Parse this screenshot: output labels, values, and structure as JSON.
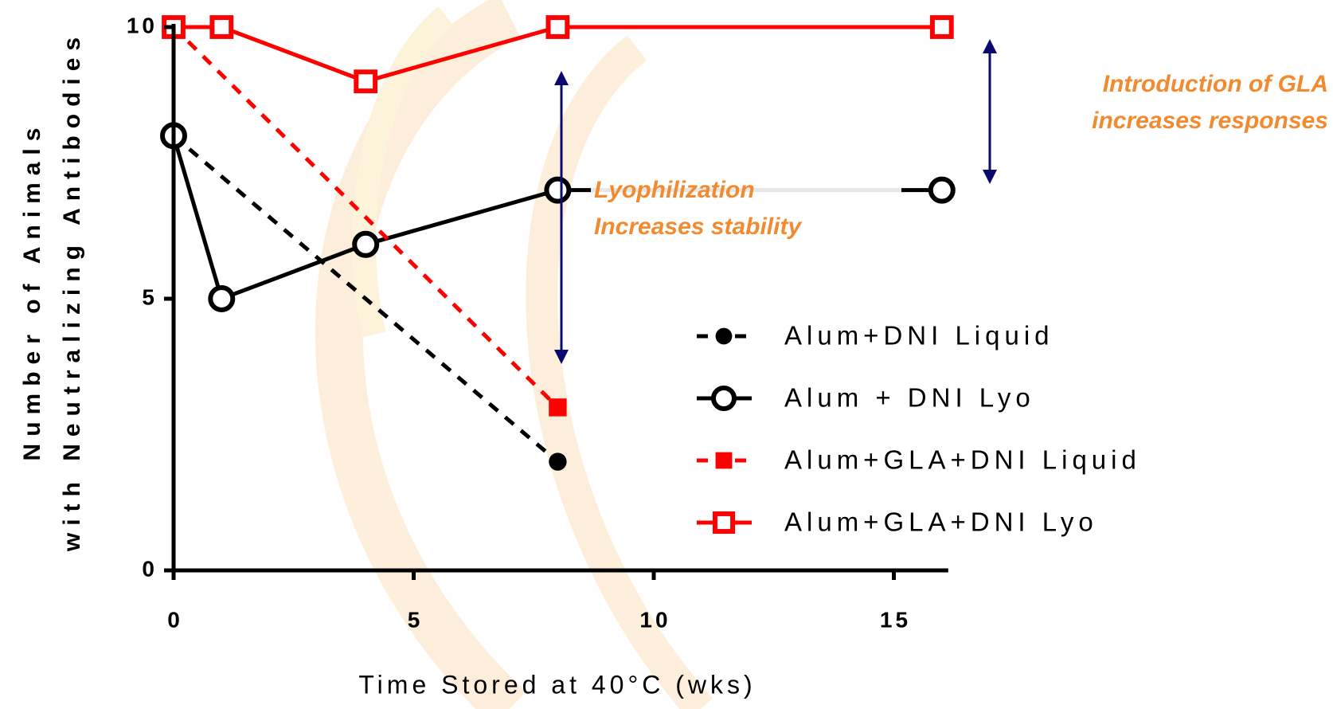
{
  "chart_data": {
    "type": "line",
    "y_title": [
      "Number of Animals",
      "with Neutralizing Antibodies"
    ],
    "x_title": "Time Stored at 40°C (wks)",
    "xlim": [
      0,
      16
    ],
    "xticks": [
      0,
      5,
      10,
      15
    ],
    "ylim": [
      0,
      10
    ],
    "yticks": [
      0,
      5,
      10
    ],
    "legend": "right",
    "series": [
      {
        "name": "Alum+DNI Liquid",
        "color": "#000000",
        "line_style": "dashed",
        "marker": "circle",
        "marker_fill": "filled",
        "x": [
          0,
          8
        ],
        "values": [
          8,
          2
        ]
      },
      {
        "name": "Alum + DNI Lyo",
        "color": "#000000",
        "line_style": "solid",
        "marker": "circle",
        "marker_fill": "open",
        "x": [
          0,
          1,
          4,
          8,
          16
        ],
        "values": [
          8,
          5,
          6,
          7,
          7
        ]
      },
      {
        "name": "Alum+GLA+DNI Liquid",
        "color": "#ff0000",
        "line_style": "dashed",
        "marker": "square",
        "marker_fill": "filled",
        "x": [
          0,
          8
        ],
        "values": [
          10,
          3
        ]
      },
      {
        "name": "Alum+GLA+DNI Lyo",
        "color": "#ff0000",
        "line_style": "solid",
        "marker": "square",
        "marker_fill": "open",
        "x": [
          0,
          1,
          4,
          8,
          16
        ],
        "values": [
          10,
          10,
          9,
          10,
          10
        ]
      }
    ],
    "annotations": [
      {
        "lines": [
          "Lyophilization",
          "Increases stability"
        ],
        "color": "#f28a30"
      },
      {
        "lines": [
          "Introduction of GLA",
          "increases responses"
        ],
        "color": "#f28a30"
      }
    ]
  }
}
